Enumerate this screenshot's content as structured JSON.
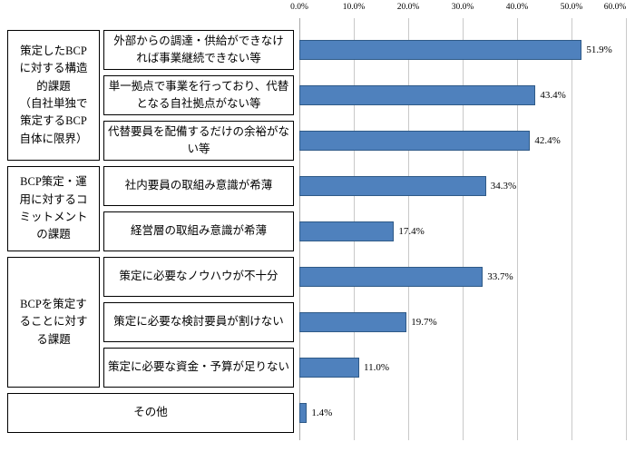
{
  "chart_data": {
    "type": "bar",
    "orientation": "horizontal",
    "title": "",
    "xlabel": "",
    "ylabel": "",
    "xlim": [
      0,
      60
    ],
    "grid": true,
    "x_ticks": [
      "0.0%",
      "10.0%",
      "20.0%",
      "30.0%",
      "40.0%",
      "50.0%",
      "60.0%"
    ],
    "bar_color": "#4f81bd",
    "bar_border": "#2f5a87",
    "groups": [
      {
        "label": "策定したBCP\nに対する構造\n的課題\n（自社単独で\n策定するBCP\n自体に限界）",
        "rows": [
          0,
          1,
          2
        ]
      },
      {
        "label": "BCP策定・運\n用に対するコ\nミットメント\nの課題",
        "rows": [
          3,
          4
        ]
      },
      {
        "label": "BCPを策定す\nることに対す\nる課題",
        "rows": [
          5,
          6,
          7
        ]
      }
    ],
    "categories": [
      "外部からの調達・供給ができなけ\nれば事業継続できない等",
      "単一拠点で事業を行っており、代替\nとなる自社拠点がない等",
      "代替要員を配備するだけの余裕がな\nい等",
      "社内要員の取組み意識が希薄",
      "経営層の取組み意識が希薄",
      "策定に必要なノウハウが不十分",
      "策定に必要な検討要員が割けない",
      "策定に必要な資金・予算が足りない",
      "その他"
    ],
    "values": [
      51.9,
      43.4,
      42.4,
      34.3,
      17.4,
      33.7,
      19.7,
      11.0,
      1.4
    ],
    "value_labels": [
      "51.9%",
      "43.4%",
      "42.4%",
      "34.3%",
      "17.4%",
      "33.7%",
      "19.7%",
      "11.0%",
      "1.4%"
    ]
  }
}
